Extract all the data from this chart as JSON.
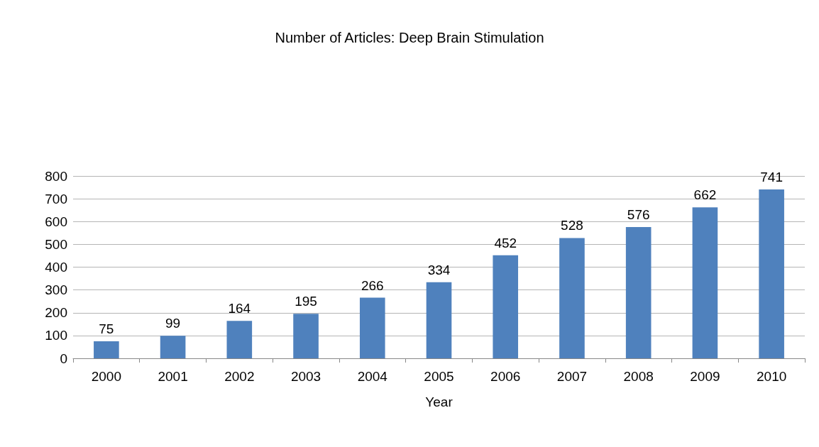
{
  "chart_data": {
    "type": "bar",
    "title": "Number of Articles: Deep Brain Stimulation",
    "xlabel": "Year",
    "categories": [
      "2000",
      "2001",
      "2002",
      "2003",
      "2004",
      "2005",
      "2006",
      "2007",
      "2008",
      "2009",
      "2010"
    ],
    "values": [
      75,
      99,
      164,
      195,
      266,
      334,
      452,
      528,
      576,
      662,
      741
    ],
    "color": "#4f81bd",
    "ylim": [
      0,
      800
    ],
    "yticks": [
      0,
      100,
      200,
      300,
      400,
      500,
      600,
      700,
      800
    ],
    "grid": "y",
    "data_labels": true
  }
}
